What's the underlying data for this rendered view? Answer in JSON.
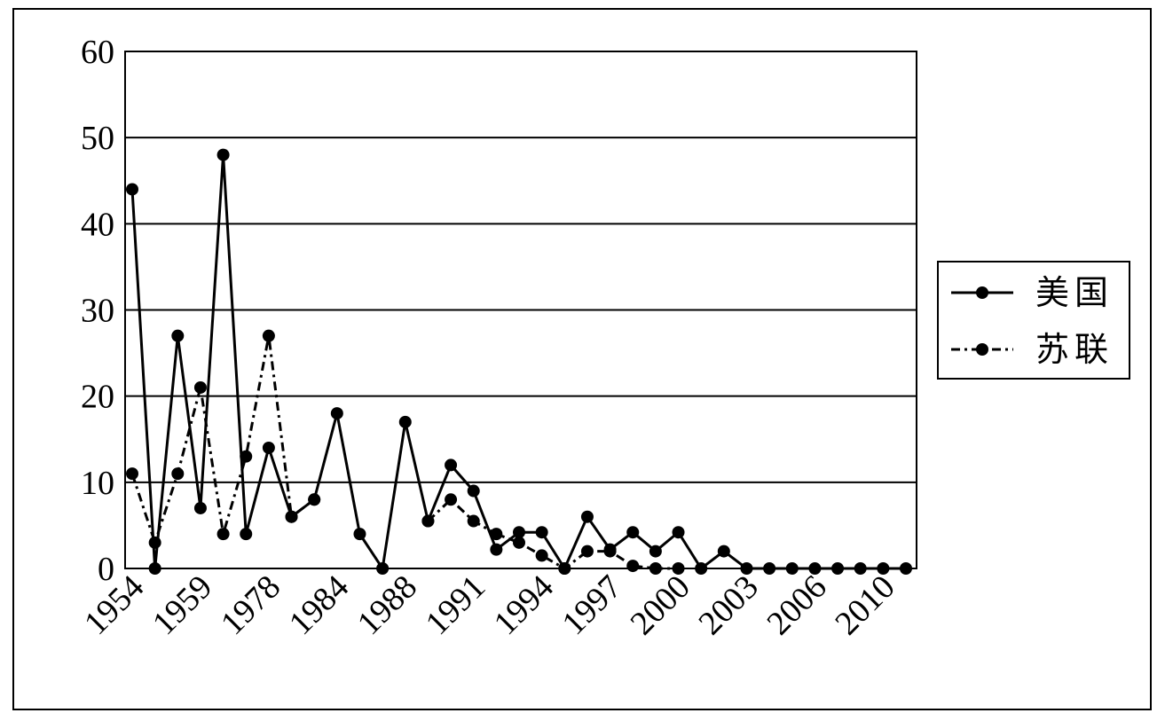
{
  "chart_data": {
    "type": "line",
    "categories": [
      "1954",
      null,
      null,
      "1959",
      null,
      null,
      "1978",
      null,
      null,
      "1984",
      null,
      null,
      "1988",
      null,
      null,
      "1991",
      null,
      null,
      "1994",
      null,
      null,
      "1997",
      null,
      null,
      "2000",
      null,
      null,
      "2003",
      null,
      null,
      "2006",
      null,
      null,
      "2010",
      null
    ],
    "series": [
      {
        "name": "美国",
        "color": "#000000",
        "dash": "solid",
        "values": [
          44,
          0,
          27,
          7,
          48,
          4,
          14,
          6,
          8,
          18,
          4,
          0,
          17,
          5.5,
          12,
          9,
          2.2,
          4.2,
          4.2,
          0,
          6,
          2.2,
          4.2,
          2,
          4.2,
          0,
          2,
          0,
          0,
          0,
          0,
          0,
          0,
          0,
          0
        ]
      },
      {
        "name": "苏联",
        "color": "#000000",
        "dash": "dashdot",
        "values": [
          11,
          3,
          11,
          21,
          4,
          13,
          27,
          6,
          8,
          null,
          null,
          null,
          null,
          5.5,
          8,
          5.5,
          4,
          3,
          1.5,
          0,
          2,
          2,
          0.3,
          0,
          0,
          null,
          null,
          null,
          null,
          null,
          null,
          null,
          null,
          null,
          null
        ]
      }
    ],
    "ylim": [
      0,
      60
    ],
    "yticks": [
      0,
      10,
      20,
      30,
      40,
      50,
      60
    ],
    "grid": true,
    "legend": "right"
  }
}
